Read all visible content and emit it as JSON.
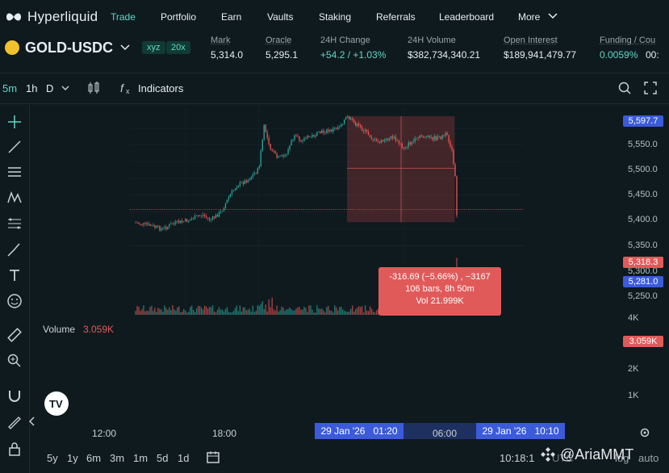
{
  "nav": {
    "brand": "Hyperliquid",
    "items": [
      {
        "label": "Trade",
        "active": true
      },
      {
        "label": "Portfolio"
      },
      {
        "label": "Earn"
      },
      {
        "label": "Vaults"
      },
      {
        "label": "Staking"
      },
      {
        "label": "Referrals"
      },
      {
        "label": "Leaderboard"
      },
      {
        "label": "More"
      }
    ]
  },
  "ticker": {
    "pair": "GOLD-USDC",
    "badge_dex": "xyz",
    "badge_leverage": "20x",
    "stats": [
      {
        "label": "Mark",
        "value": "5,314.0",
        "color": "#e6eef0"
      },
      {
        "label": "Oracle",
        "value": "5,295.1",
        "color": "#e6eef0"
      },
      {
        "label": "24H Change",
        "value": "+54.2 / +1.03%",
        "color": "#5fd8c6"
      },
      {
        "label": "24H Volume",
        "value": "$382,734,340.21",
        "color": "#e6eef0"
      },
      {
        "label": "Open Interest",
        "value": "$189,941,479.77",
        "color": "#e6eef0"
      },
      {
        "label": "Funding / Cou",
        "value": "0.0059%",
        "value2": "00:",
        "color": "#5fd8c6"
      }
    ]
  },
  "toolbar": {
    "intervals": [
      "5m",
      "1h",
      "D"
    ],
    "indicators": "Indicators"
  },
  "price_scale": {
    "ticks": [
      "5,550.0",
      "5,500.0",
      "5,450.0",
      "5,400.0",
      "5,350.0",
      "5,300.0",
      "5,250.0"
    ],
    "tag_high": "5,597.7",
    "tag_current": "5,318.3",
    "tag_low": "5,281.0",
    "vol_ticks": [
      "4K",
      "2K",
      "1K"
    ],
    "vol_tag": "3.059K"
  },
  "measure_tooltip": {
    "line1": "-316.69 (−5.66%) , −3167",
    "line2": "106 bars, 8h 50m",
    "line3": "Vol 21.999K"
  },
  "volume": {
    "label": "Volume",
    "value": "3.059K"
  },
  "time_axis": {
    "labels": [
      "12:00",
      "18:00",
      "06:00"
    ],
    "tag_start": "29 Jan '26   01:20",
    "tag_end": "29 Jan '26   10:10"
  },
  "bottom": {
    "ranges": [
      "5y",
      "1y",
      "6m",
      "3m",
      "1m",
      "5d",
      "1d"
    ],
    "clock": "10:18:1",
    "right": "UTC",
    "log": "log",
    "auto": "auto",
    "watermark": "@AriaMMT"
  },
  "colors": {
    "up": "#26a69a",
    "down": "#ef5350",
    "accent": "#5fd8c6"
  }
}
